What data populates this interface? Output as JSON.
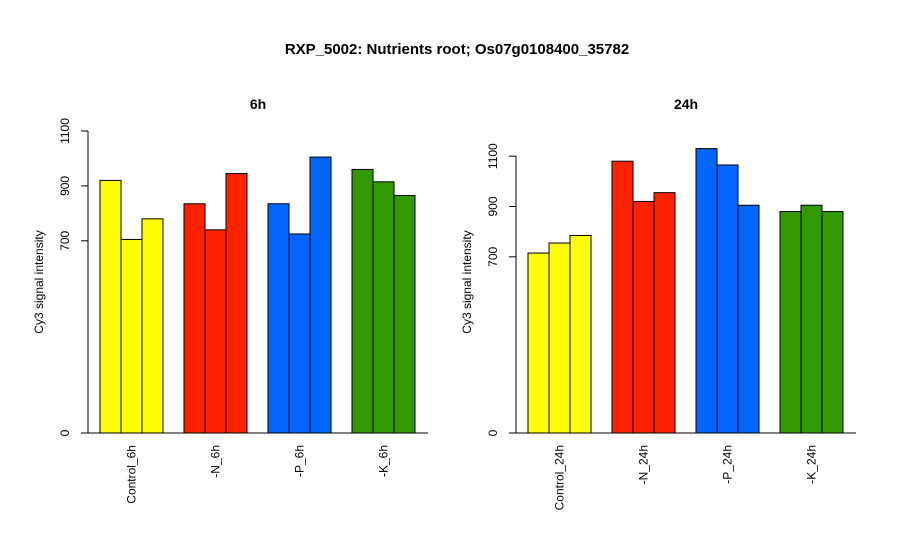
{
  "title": "RXP_5002: Nutrients root; Os07g0108400_35782",
  "chart_data": [
    {
      "type": "bar",
      "title": "6h",
      "ylabel": "Cy3 signal intensity",
      "y_ticks": [
        0,
        700,
        900,
        1100
      ],
      "ylim": [
        0,
        1100
      ],
      "groups": [
        {
          "label": "Control_6h",
          "color": "#ffff00",
          "values": [
            920,
            705,
            780
          ]
        },
        {
          "label": "-N_6h",
          "color": "#ff2200",
          "values": [
            835,
            740,
            945
          ]
        },
        {
          "label": "-P_6h",
          "color": "#0066ff",
          "values": [
            835,
            725,
            1005
          ]
        },
        {
          "label": "-K_6h",
          "color": "#339900",
          "values": [
            960,
            915,
            865
          ]
        }
      ]
    },
    {
      "type": "bar",
      "title": "24h",
      "ylabel": "Cy3 signal intensity",
      "y_ticks": [
        0,
        700,
        900,
        1100
      ],
      "ylim": [
        0,
        1200
      ],
      "groups": [
        {
          "label": "Control_24h",
          "color": "#ffff00",
          "values": [
            715,
            755,
            785
          ]
        },
        {
          "label": "-N_24h",
          "color": "#ff2200",
          "values": [
            1080,
            920,
            955
          ]
        },
        {
          "label": "-P_24h",
          "color": "#0066ff",
          "values": [
            1130,
            1065,
            905
          ]
        },
        {
          "label": "-K_24h",
          "color": "#339900",
          "values": [
            880,
            905,
            880
          ]
        }
      ]
    }
  ]
}
